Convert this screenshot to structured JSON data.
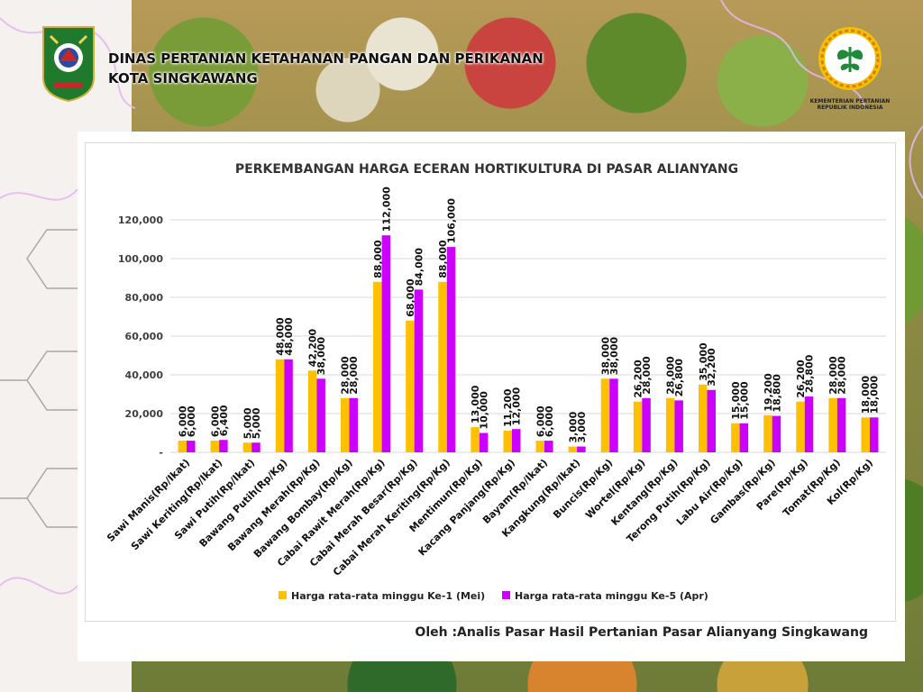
{
  "header": {
    "org_line1": "DINAS PERTANIAN KETAHANAN PANGAN DAN PERIKANAN",
    "org_line2": "KOTA SINGKAWANG",
    "ministry_caption_line1": "KEMENTERIAN PERTANIAN",
    "ministry_caption_line2": "REPUBLIK INDONESIA"
  },
  "colors": {
    "series1": "#FFC000",
    "series2": "#CC00FF",
    "grid": "#d9d9d9",
    "text": "#404040"
  },
  "chart_data": {
    "type": "bar",
    "title": "PERKEMBANGAN HARGA ECERAN HORTIKULTURA DI PASAR ALIANYANG",
    "ylim": [
      0,
      120000
    ],
    "yticks": [
      {
        "value": 0,
        "label": "-"
      },
      {
        "value": 20000,
        "label": "20,000"
      },
      {
        "value": 40000,
        "label": "40,000"
      },
      {
        "value": 60000,
        "label": "60,000"
      },
      {
        "value": 80000,
        "label": "80,000"
      },
      {
        "value": 100000,
        "label": "100,000"
      },
      {
        "value": 120000,
        "label": "120,000"
      }
    ],
    "grid": true,
    "legend_position": "bottom",
    "categories": [
      "Sawi Manis(Rp/Ikat)",
      "Sawi Keriting(Rp/Ikat)",
      "Sawi Putih(Rp/Ikat)",
      "Bawang Putih(Rp/Kg)",
      "Bawang Merah(Rp/Kg)",
      "Bawang Bombay(Rp/Kg)",
      "Cabai Rawit Merah(Rp/Kg)",
      "Cabai Merah Besar(Rp/Kg)",
      "Cabai Merah Keriting(Rp/Kg)",
      "Mentimun(Rp/Kg)",
      "Kacang Panjang(Rp/Kg)",
      "Bayam(Rp/Ikat)",
      "Kangkung(Rp/Ikat)",
      "Buncis(Rp/Kg)",
      "Wortel(Rp/Kg)",
      "Kentang(Rp/Kg)",
      "Terong Putih(Rp/Kg)",
      "Labu Air(Rp/Kg)",
      "Gambas(Rp/Kg)",
      "Pare(Rp/Kg)",
      "Tomat(Rp/Kg)",
      "Kol(Rp/Kg)"
    ],
    "series": [
      {
        "name": "Harga rata-rata minggu Ke-1 (Mei)",
        "values": [
          6000,
          6000,
          5000,
          48000,
          42200,
          28000,
          88000,
          68000,
          88000,
          13000,
          11200,
          6000,
          3000,
          38000,
          26200,
          28000,
          35000,
          15000,
          19200,
          26200,
          28000,
          18000
        ],
        "labels": [
          "6,000",
          "6,000",
          "5,000",
          "48,000",
          "42,200",
          "28,000",
          "88,000",
          "68,000",
          "88,000",
          "13,000",
          "11,200",
          "6,000",
          "3,000",
          "38,000",
          "26,200",
          "28,000",
          "35,000",
          "15,000",
          "19,200",
          "26,200",
          "28,000",
          "18,000"
        ]
      },
      {
        "name": "Harga rata-rata minggu Ke-5 (Apr)",
        "values": [
          6000,
          6400,
          5000,
          48000,
          38000,
          28000,
          112000,
          84000,
          106000,
          10000,
          12000,
          6000,
          3000,
          38000,
          28000,
          26800,
          32200,
          15000,
          18800,
          28800,
          28000,
          18000
        ],
        "labels": [
          "6,000",
          "6,400",
          "5,000",
          "48,000",
          "38,000",
          "28,000",
          "112,000",
          "84,000",
          "106,000",
          "10,000",
          "12,000",
          "6,000",
          "3,000",
          "38,000",
          "28,000",
          "26,800",
          "32,200",
          "15,000",
          "18,800",
          "28,800",
          "28,000",
          "18,000"
        ]
      }
    ]
  },
  "credit": "Oleh :Analis Pasar Hasil Pertanian Pasar Alianyang Singkawang"
}
